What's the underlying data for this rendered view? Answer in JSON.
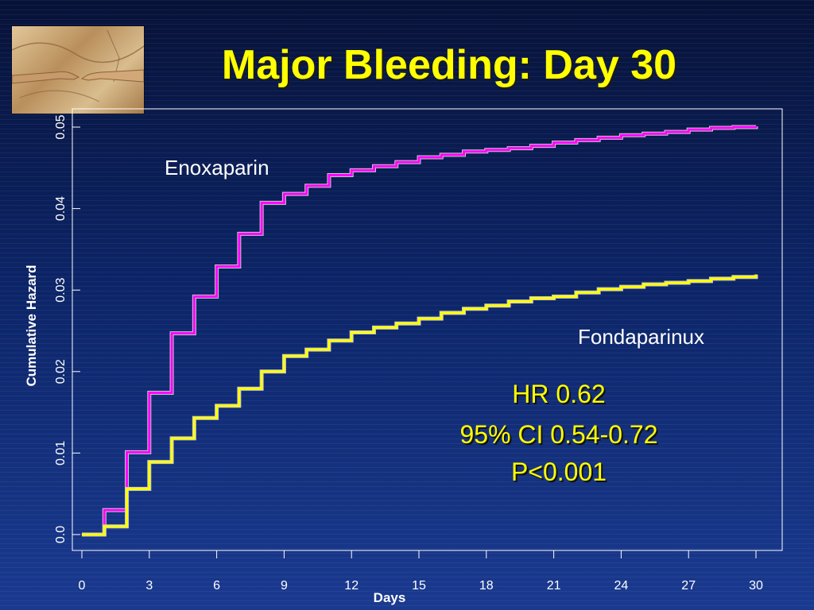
{
  "slide": {
    "title": "Major Bleeding: Day 30",
    "image": "fresco-hands-image"
  },
  "colors": {
    "enoxaparin": "#ff00ff",
    "fondaparinux": "#ffff00",
    "axis": "#ffffff",
    "title": "#ffff00"
  },
  "chart_data": {
    "type": "line",
    "step": true,
    "xlabel": "Days",
    "ylabel": "Cumulative Hazard",
    "xlim": [
      0,
      30
    ],
    "ylim": [
      0,
      0.05
    ],
    "x_ticks": [
      0,
      3,
      6,
      9,
      12,
      15,
      18,
      21,
      24,
      27,
      30
    ],
    "y_ticks": [
      0.0,
      0.01,
      0.02,
      0.03,
      0.04,
      0.05
    ],
    "y_tick_labels": [
      "0.0",
      "0.01",
      "0.02",
      "0.03",
      "0.04",
      "0.05"
    ],
    "grid": false,
    "series": [
      {
        "name": "Enoxaparin",
        "x": [
          0,
          1,
          2,
          3,
          4,
          5,
          6,
          7,
          8,
          9,
          10,
          11,
          12,
          13,
          14,
          15,
          16,
          17,
          18,
          19,
          20,
          21,
          22,
          23,
          24,
          25,
          26,
          27,
          28,
          29,
          30
        ],
        "y": [
          0.0,
          0.003,
          0.0101,
          0.0174,
          0.0247,
          0.0292,
          0.0329,
          0.0369,
          0.0407,
          0.0418,
          0.0428,
          0.0441,
          0.0447,
          0.0452,
          0.0457,
          0.0463,
          0.0466,
          0.047,
          0.0472,
          0.0474,
          0.0477,
          0.0481,
          0.0484,
          0.0487,
          0.049,
          0.0492,
          0.0494,
          0.0497,
          0.0499,
          0.05,
          0.0501
        ]
      },
      {
        "name": "Fondaparinux",
        "x": [
          0,
          1,
          2,
          3,
          4,
          5,
          6,
          7,
          8,
          9,
          10,
          11,
          12,
          13,
          14,
          15,
          16,
          17,
          18,
          19,
          20,
          21,
          22,
          23,
          24,
          25,
          26,
          27,
          28,
          29,
          30
        ],
        "y": [
          0.0,
          0.001,
          0.0056,
          0.0089,
          0.0118,
          0.0143,
          0.0158,
          0.0179,
          0.02,
          0.0219,
          0.0227,
          0.0238,
          0.0248,
          0.0254,
          0.0259,
          0.0265,
          0.0272,
          0.0277,
          0.0281,
          0.0286,
          0.029,
          0.0292,
          0.0297,
          0.0301,
          0.0304,
          0.0307,
          0.0309,
          0.0311,
          0.0314,
          0.0316,
          0.0319
        ]
      }
    ],
    "annotations": {
      "enoxaparin_label": "Enoxaparin",
      "fondaparinux_label": "Fondaparinux",
      "stats": [
        "HR 0.62",
        "95% CI 0.54-0.72",
        "P<0.001"
      ]
    }
  }
}
